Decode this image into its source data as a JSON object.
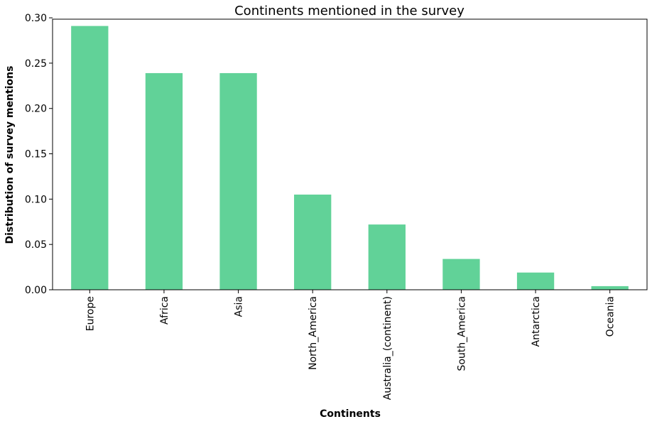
{
  "chart_data": {
    "type": "bar",
    "title": "Continents mentioned in the survey",
    "xlabel": "Continents",
    "ylabel": "Distribution of survey mentions",
    "categories": [
      "Europe",
      "Africa",
      "Asia",
      "North_America",
      "Australia_(continent)",
      "South_America",
      "Antarctica",
      "Oceania"
    ],
    "values": [
      0.291,
      0.239,
      0.239,
      0.105,
      0.072,
      0.034,
      0.019,
      0.004
    ],
    "ylim": [
      0,
      0.3
    ],
    "yticks": [
      0.0,
      0.05,
      0.1,
      0.15,
      0.2,
      0.25,
      0.3
    ],
    "ytick_labels": [
      "0.00",
      "0.05",
      "0.10",
      "0.15",
      "0.20",
      "0.25",
      "0.30"
    ],
    "bar_color": "#61d298",
    "grid": false,
    "legend": "none"
  }
}
